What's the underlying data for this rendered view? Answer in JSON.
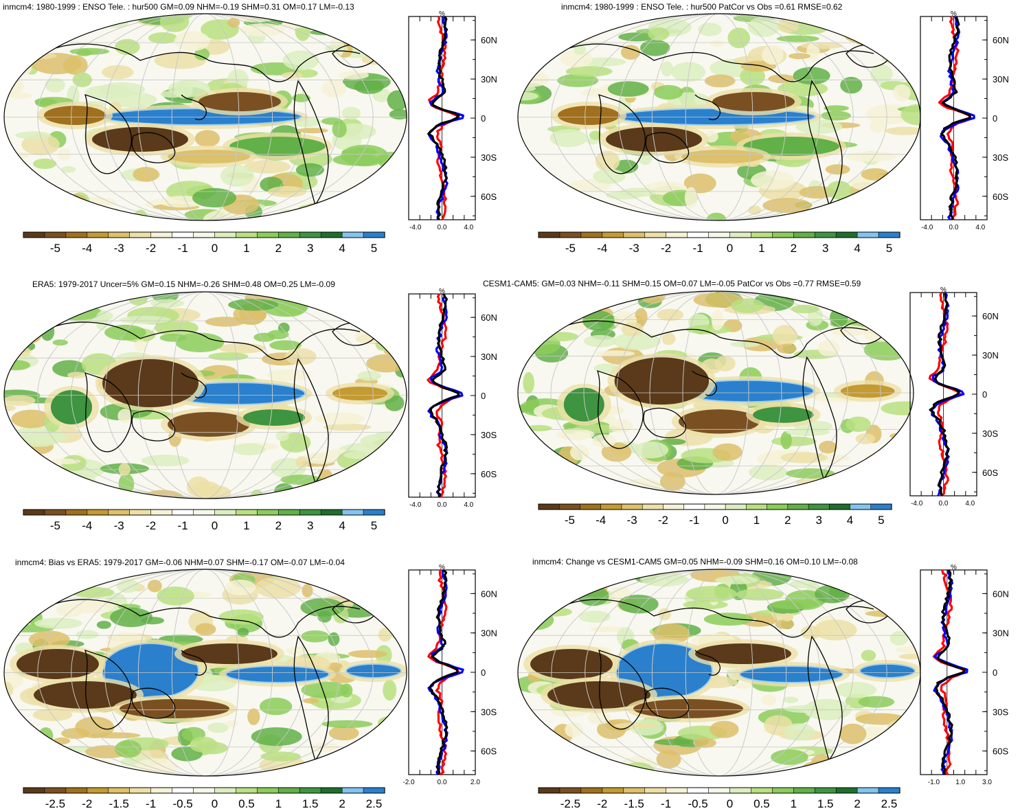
{
  "colors": {
    "palette": [
      "#5a3a1a",
      "#7a5022",
      "#a0701e",
      "#c49a32",
      "#ddc06a",
      "#ece0a8",
      "#f6f2d6",
      "#ffffff",
      "#f4f8e8",
      "#dceec0",
      "#b8e080",
      "#8ccc5a",
      "#62b048",
      "#3e9440",
      "#1f6e2e",
      "#82c4ee",
      "#2a80cc"
    ],
    "model_line": "#000000",
    "obs_line": "#ff0000",
    "ref_line": "#0000ff",
    "coast": "#000000",
    "grid": "#c8c8c8"
  },
  "panels": [
    {
      "id": "p1",
      "title": "inmcm4: 1980-1999 : ENSO Tele. : hur500 GM=0.09 NHM=-0.19 SHM=0.31 OM=0.17 LM=-0.13",
      "colorbar_labels": [
        "-5",
        "-4",
        "-3",
        "-2",
        "-1",
        "0",
        "1",
        "2",
        "3",
        "4",
        "5"
      ],
      "zonal": {
        "unit": "%",
        "xticks": [
          "-4.0",
          "0.0",
          "4.0"
        ],
        "xrange": [
          -5,
          5
        ],
        "yticks": [
          "60N",
          "30N",
          "0",
          "30S",
          "60S"
        ]
      }
    },
    {
      "id": "p2",
      "title": "inmcm4: 1980-1999 : ENSO Tele. : hur500 PatCor vs Obs =0.61 RMSE=0.62",
      "colorbar_labels": [
        "-5",
        "-4",
        "-3",
        "-2",
        "-1",
        "0",
        "1",
        "2",
        "3",
        "4",
        "5"
      ],
      "zonal": {
        "unit": "%",
        "xticks": [
          "-4.0",
          "0.0",
          "4.0"
        ],
        "xrange": [
          -5,
          5
        ],
        "yticks": [
          "60N",
          "30N",
          "0",
          "30S",
          "60S"
        ]
      }
    },
    {
      "id": "p3",
      "title": "ERA5: 1979-2017 Uncer=5% GM=0.15 NHM=-0.26 SHM=0.48 OM=0.25 LM=-0.09",
      "colorbar_labels": [
        "-5",
        "-4",
        "-3",
        "-2",
        "-1",
        "0",
        "1",
        "2",
        "3",
        "4",
        "5"
      ],
      "zonal": {
        "unit": "%",
        "xticks": [
          "-4.0",
          "0.0",
          "4.0"
        ],
        "xrange": [
          -5,
          5
        ],
        "yticks": [
          "60N",
          "30N",
          "0",
          "30S",
          "60S"
        ]
      }
    },
    {
      "id": "p4",
      "title": "CESM1-CAM5: GM=0.03 NHM=-0.11 SHM=0.15 OM=0.07 LM=-0.05 PatCor vs Obs =0.77 RMSE=0.59",
      "colorbar_labels": [
        "-5",
        "-4",
        "-3",
        "-2",
        "-1",
        "0",
        "1",
        "2",
        "3",
        "4",
        "5"
      ],
      "zonal": {
        "unit": "%",
        "xticks": [
          "-4.0",
          "0.0",
          "4.0"
        ],
        "xrange": [
          -5,
          5
        ],
        "yticks": [
          "60N",
          "30N",
          "0",
          "30S",
          "60S"
        ]
      }
    },
    {
      "id": "p5",
      "title": "inmcm4: Bias vs ERA5: 1979-2017 GM=-0.06 NHM=0.07 SHM=-0.17 OM=-0.07 LM=-0.04",
      "colorbar_labels": [
        "-2.5",
        "-2",
        "-1.5",
        "-1",
        "-0.5",
        "0",
        "0.5",
        "1",
        "1.5",
        "2",
        "2.5"
      ],
      "zonal": {
        "unit": "%",
        "xticks": [
          "-2.0",
          "0.0",
          "2.0"
        ],
        "xrange": [
          -2,
          2
        ],
        "yticks": [
          "60N",
          "30N",
          "0",
          "30S",
          "60S"
        ]
      }
    },
    {
      "id": "p6",
      "title": "inmcm4: Change vs CESM1-CAM5 GM=0.05 NHM=-0.09 SHM=0.16 OM=0.10 LM=-0.08",
      "colorbar_labels": [
        "-2.5",
        "-2",
        "-1.5",
        "-1",
        "-0.5",
        "0",
        "0.5",
        "1",
        "1.5",
        "2",
        "2.5"
      ],
      "zonal": {
        "unit": "%",
        "xticks": [
          "-1.0",
          "1.0",
          "3.0"
        ],
        "xrange": [
          -2,
          3
        ],
        "yticks": [
          "60N",
          "30N",
          "0",
          "30S",
          "60S"
        ]
      }
    }
  ]
}
